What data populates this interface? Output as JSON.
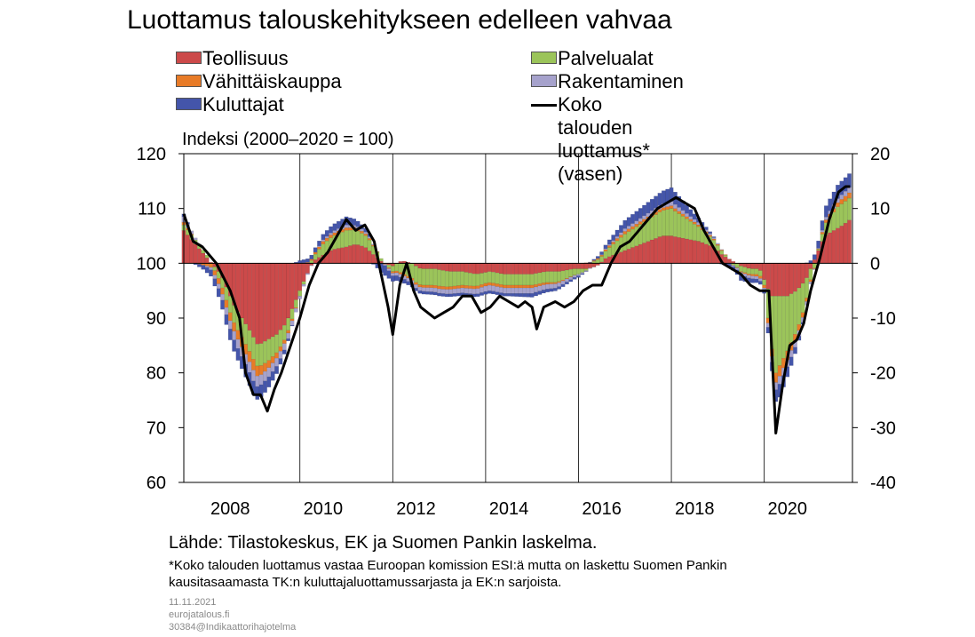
{
  "title": "Luottamus talouskehitykseen edelleen vahvaa",
  "units_label": "Indeksi (2000–2020 = 100)",
  "source": "Lähde: Tilastokeskus, EK ja Suomen Pankin laskelma.",
  "note_lines": [
    "*Koko talouden luottamus vastaa Euroopan komission ESI:ä mutta on laskettu Suomen Pankin",
    "kausitasaamasta TK:n kuluttajaluottamussarjasta ja EK:n sarjoista."
  ],
  "meta_lines": [
    "11.11.2021",
    "eurojatalous.fi",
    "30384@Indikaattorihajotelma"
  ],
  "legend": [
    {
      "label": "Teollisuus",
      "color": "#cc4a4a",
      "kind": "bar"
    },
    {
      "label": "Palvelualat",
      "color": "#9bc45a",
      "kind": "bar"
    },
    {
      "label": "Vähittäiskauppa",
      "color": "#e87b27",
      "kind": "bar"
    },
    {
      "label": "Rakentaminen",
      "color": "#a6a2cc",
      "kind": "bar"
    },
    {
      "label": "Kuluttajat",
      "color": "#4455aa",
      "kind": "bar"
    },
    {
      "label": "Koko talouden luottamus* (vasen)",
      "color": "#000000",
      "kind": "line"
    }
  ],
  "chart_data": {
    "type": "bar",
    "stacked": true,
    "title": "Luottamus talouskehitykseen edelleen vahvaa",
    "ylabel": "Indeksi (2000–2020 = 100)",
    "ylim_left": [
      60,
      120
    ],
    "ylim_right": [
      -40,
      20
    ],
    "yticks_left": [
      "120",
      "110",
      "100",
      "90",
      "80",
      "70",
      "60"
    ],
    "yticks_right": [
      "20",
      "10",
      "0",
      "-10",
      "-20",
      "-30",
      "-40"
    ],
    "x_range": [
      2007.5,
      2021.9
    ],
    "x_tick_labels": [
      "2008",
      "2010",
      "2012",
      "2014",
      "2016",
      "2018",
      "2020"
    ],
    "grid": "vertical",
    "line_series": {
      "name": "Koko talouden luottamus* (vasen)",
      "axis": "left",
      "points": [
        [
          2007.5,
          109
        ],
        [
          2007.7,
          104
        ],
        [
          2007.9,
          103
        ],
        [
          2008.2,
          100
        ],
        [
          2008.5,
          95
        ],
        [
          2008.7,
          90
        ],
        [
          2008.83,
          80
        ],
        [
          2009.0,
          76
        ],
        [
          2009.15,
          76
        ],
        [
          2009.3,
          73
        ],
        [
          2009.45,
          77
        ],
        [
          2009.6,
          80
        ],
        [
          2009.8,
          85
        ],
        [
          2010.0,
          90
        ],
        [
          2010.2,
          96
        ],
        [
          2010.4,
          100
        ],
        [
          2010.6,
          102
        ],
        [
          2010.8,
          105
        ],
        [
          2011.0,
          108
        ],
        [
          2011.2,
          106
        ],
        [
          2011.4,
          107
        ],
        [
          2011.6,
          104
        ],
        [
          2011.75,
          98
        ],
        [
          2011.9,
          92
        ],
        [
          2012.0,
          87
        ],
        [
          2012.15,
          96
        ],
        [
          2012.3,
          100
        ],
        [
          2012.45,
          95
        ],
        [
          2012.6,
          92
        ],
        [
          2012.75,
          91
        ],
        [
          2012.9,
          90
        ],
        [
          2013.1,
          91
        ],
        [
          2013.3,
          92
        ],
        [
          2013.5,
          94
        ],
        [
          2013.7,
          94
        ],
        [
          2013.9,
          91
        ],
        [
          2014.1,
          92
        ],
        [
          2014.3,
          94
        ],
        [
          2014.5,
          93
        ],
        [
          2014.7,
          92
        ],
        [
          2014.85,
          93
        ],
        [
          2015.0,
          92
        ],
        [
          2015.1,
          88
        ],
        [
          2015.25,
          92
        ],
        [
          2015.5,
          93
        ],
        [
          2015.7,
          92
        ],
        [
          2015.9,
          93
        ],
        [
          2016.1,
          95
        ],
        [
          2016.3,
          96
        ],
        [
          2016.5,
          96
        ],
        [
          2016.7,
          100
        ],
        [
          2016.9,
          103
        ],
        [
          2017.1,
          104
        ],
        [
          2017.3,
          106
        ],
        [
          2017.5,
          108
        ],
        [
          2017.7,
          110
        ],
        [
          2017.9,
          111
        ],
        [
          2018.1,
          112
        ],
        [
          2018.3,
          111
        ],
        [
          2018.5,
          110
        ],
        [
          2018.7,
          106
        ],
        [
          2018.9,
          103
        ],
        [
          2019.1,
          100
        ],
        [
          2019.3,
          99
        ],
        [
          2019.5,
          98
        ],
        [
          2019.7,
          96
        ],
        [
          2019.9,
          95
        ],
        [
          2020.1,
          95
        ],
        [
          2020.25,
          69
        ],
        [
          2020.4,
          78
        ],
        [
          2020.55,
          85
        ],
        [
          2020.7,
          86
        ],
        [
          2020.85,
          89
        ],
        [
          2021.0,
          95
        ],
        [
          2021.2,
          101
        ],
        [
          2021.4,
          108
        ],
        [
          2021.6,
          113
        ],
        [
          2021.75,
          114
        ],
        [
          2021.85,
          114
        ]
      ]
    },
    "bar_series": [
      {
        "name": "Teollisuus",
        "axis": "right",
        "points": [
          [
            2007.5,
            6
          ],
          [
            2007.8,
            3
          ],
          [
            2008.0,
            1
          ],
          [
            2008.3,
            -2
          ],
          [
            2008.6,
            -8
          ],
          [
            2008.9,
            -12
          ],
          [
            2009.1,
            -15
          ],
          [
            2009.3,
            -14
          ],
          [
            2009.5,
            -13
          ],
          [
            2009.7,
            -11
          ],
          [
            2009.9,
            -7
          ],
          [
            2010.1,
            -3
          ],
          [
            2010.3,
            0.5
          ],
          [
            2010.5,
            1.5
          ],
          [
            2010.7,
            2.5
          ],
          [
            2011.0,
            3
          ],
          [
            2011.2,
            3.5
          ],
          [
            2011.4,
            3
          ],
          [
            2011.6,
            1.5
          ],
          [
            2011.8,
            0
          ],
          [
            2012.0,
            -0.5
          ],
          [
            2012.2,
            0.5
          ],
          [
            2012.4,
            0
          ],
          [
            2012.6,
            -1
          ],
          [
            2012.9,
            -1
          ],
          [
            2013.2,
            -1.5
          ],
          [
            2013.5,
            -1.5
          ],
          [
            2013.8,
            -2
          ],
          [
            2014.1,
            -1.5
          ],
          [
            2014.4,
            -2
          ],
          [
            2014.7,
            -2
          ],
          [
            2015.0,
            -2
          ],
          [
            2015.3,
            -1.5
          ],
          [
            2015.6,
            -1.5
          ],
          [
            2015.9,
            -1
          ],
          [
            2016.2,
            -1
          ],
          [
            2016.4,
            -0.5
          ],
          [
            2016.6,
            1
          ],
          [
            2016.9,
            2
          ],
          [
            2017.2,
            3
          ],
          [
            2017.5,
            4
          ],
          [
            2017.8,
            5
          ],
          [
            2018.0,
            5
          ],
          [
            2018.3,
            4.5
          ],
          [
            2018.6,
            4
          ],
          [
            2018.9,
            3
          ],
          [
            2019.1,
            1.5
          ],
          [
            2019.3,
            0.5
          ],
          [
            2019.5,
            -0.5
          ],
          [
            2019.7,
            -1
          ],
          [
            2019.9,
            -1
          ],
          [
            2020.15,
            -6
          ],
          [
            2020.35,
            -6
          ],
          [
            2020.5,
            -6
          ],
          [
            2020.7,
            -5
          ],
          [
            2020.9,
            -3
          ],
          [
            2021.1,
            1
          ],
          [
            2021.3,
            5
          ],
          [
            2021.5,
            6
          ],
          [
            2021.7,
            7
          ],
          [
            2021.85,
            8
          ]
        ]
      },
      {
        "name": "Palvelualat",
        "axis": "right",
        "points": [
          [
            2007.5,
            1
          ],
          [
            2008.0,
            0.5
          ],
          [
            2008.5,
            -3
          ],
          [
            2009.0,
            -4
          ],
          [
            2009.3,
            -4
          ],
          [
            2009.6,
            -3
          ],
          [
            2010.0,
            -1
          ],
          [
            2010.5,
            2
          ],
          [
            2011.0,
            3
          ],
          [
            2011.5,
            2
          ],
          [
            2012.0,
            -1
          ],
          [
            2012.5,
            -3
          ],
          [
            2013.0,
            -3
          ],
          [
            2013.5,
            -2.5
          ],
          [
            2014.0,
            -2
          ],
          [
            2014.5,
            -2
          ],
          [
            2015.0,
            -2
          ],
          [
            2015.5,
            -2
          ],
          [
            2016.0,
            -1
          ],
          [
            2016.5,
            1
          ],
          [
            2017.0,
            3
          ],
          [
            2017.5,
            4
          ],
          [
            2018.0,
            5
          ],
          [
            2018.5,
            3
          ],
          [
            2019.0,
            1
          ],
          [
            2019.5,
            -1
          ],
          [
            2020.0,
            -1
          ],
          [
            2020.25,
            -14
          ],
          [
            2020.5,
            -10
          ],
          [
            2020.8,
            -6
          ],
          [
            2021.0,
            -2
          ],
          [
            2021.3,
            2
          ],
          [
            2021.6,
            4
          ],
          [
            2021.85,
            4
          ]
        ]
      },
      {
        "name": "Vähittäiskauppa",
        "axis": "right",
        "points": [
          [
            2007.5,
            0.5
          ],
          [
            2008.5,
            -1.5
          ],
          [
            2009.0,
            -2
          ],
          [
            2009.5,
            -1
          ],
          [
            2010.0,
            0
          ],
          [
            2010.5,
            0.5
          ],
          [
            2011.0,
            0.5
          ],
          [
            2011.5,
            0.3
          ],
          [
            2012.0,
            -0.3
          ],
          [
            2013.0,
            -0.5
          ],
          [
            2014.0,
            -0.5
          ],
          [
            2015.0,
            -0.5
          ],
          [
            2016.0,
            0
          ],
          [
            2017.0,
            0.5
          ],
          [
            2018.0,
            0.5
          ],
          [
            2019.0,
            0.2
          ],
          [
            2020.0,
            -0.5
          ],
          [
            2020.3,
            -2
          ],
          [
            2020.8,
            -1
          ],
          [
            2021.3,
            0.5
          ],
          [
            2021.85,
            1
          ]
        ]
      },
      {
        "name": "Rakentaminen",
        "axis": "right",
        "points": [
          [
            2007.5,
            1
          ],
          [
            2008.5,
            -1.5
          ],
          [
            2009.0,
            -2
          ],
          [
            2009.5,
            -1.5
          ],
          [
            2010.0,
            -0.5
          ],
          [
            2010.5,
            0.3
          ],
          [
            2011.0,
            0.5
          ],
          [
            2011.5,
            0.3
          ],
          [
            2012.0,
            -0.5
          ],
          [
            2013.0,
            -0.8
          ],
          [
            2014.0,
            -1
          ],
          [
            2015.0,
            -1
          ],
          [
            2015.5,
            -0.8
          ],
          [
            2016.0,
            -0.3
          ],
          [
            2017.0,
            0.5
          ],
          [
            2018.0,
            0.8
          ],
          [
            2019.0,
            0.2
          ],
          [
            2019.5,
            -0.5
          ],
          [
            2020.0,
            -0.5
          ],
          [
            2020.3,
            -1.5
          ],
          [
            2020.8,
            -1
          ],
          [
            2021.3,
            0.5
          ],
          [
            2021.85,
            1
          ]
        ]
      },
      {
        "name": "Kuluttajat",
        "axis": "right",
        "points": [
          [
            2007.5,
            0.5
          ],
          [
            2008.0,
            -1
          ],
          [
            2008.5,
            -2
          ],
          [
            2009.0,
            -2.5
          ],
          [
            2009.3,
            -2
          ],
          [
            2009.6,
            -1
          ],
          [
            2010.0,
            0.5
          ],
          [
            2010.5,
            1
          ],
          [
            2011.0,
            1.5
          ],
          [
            2011.5,
            0.5
          ],
          [
            2011.8,
            -2
          ],
          [
            2012.0,
            -1
          ],
          [
            2012.5,
            -0.5
          ],
          [
            2013.0,
            -0.5
          ],
          [
            2013.5,
            -0.5
          ],
          [
            2014.0,
            -0.5
          ],
          [
            2014.5,
            -0.5
          ],
          [
            2015.0,
            -0.7
          ],
          [
            2015.5,
            -0.5
          ],
          [
            2016.0,
            -0.3
          ],
          [
            2016.5,
            0.5
          ],
          [
            2017.0,
            1.5
          ],
          [
            2017.5,
            2
          ],
          [
            2018.0,
            2.5
          ],
          [
            2018.5,
            1
          ],
          [
            2019.0,
            0
          ],
          [
            2019.5,
            -1
          ],
          [
            2020.0,
            -0.5
          ],
          [
            2020.3,
            -2.5
          ],
          [
            2020.6,
            -1.5
          ],
          [
            2021.0,
            0.5
          ],
          [
            2021.3,
            2
          ],
          [
            2021.6,
            2.5
          ],
          [
            2021.85,
            2.5
          ]
        ]
      }
    ]
  }
}
